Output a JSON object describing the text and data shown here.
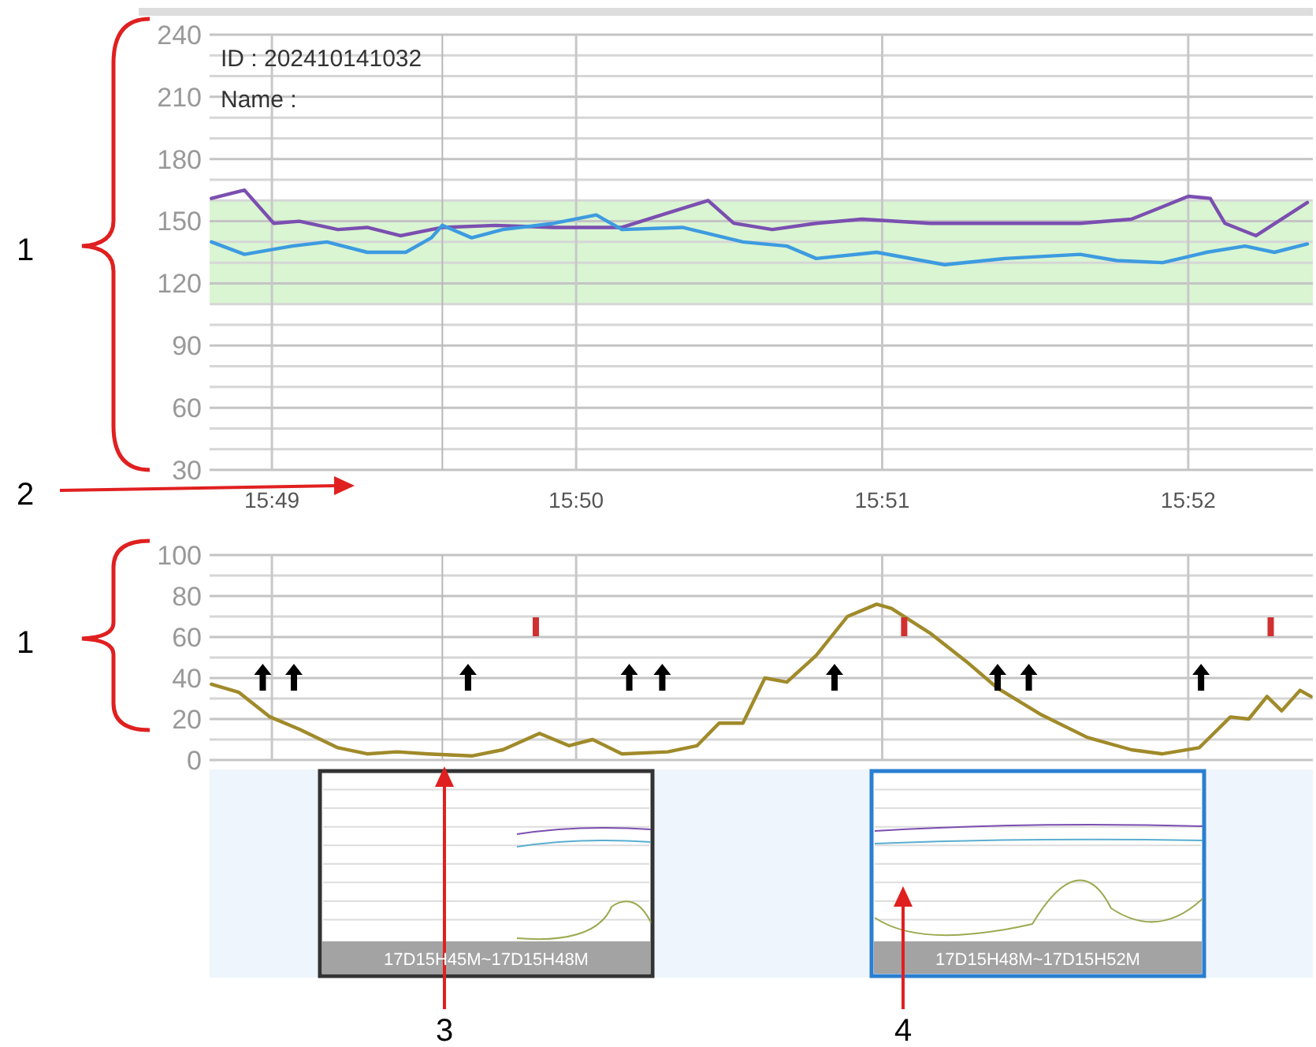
{
  "chart_data": [
    {
      "type": "line",
      "annotations": [
        "ID : 202410141032",
        "Name :"
      ],
      "xlim": [
        15.8133,
        15.8735
      ],
      "xticks": [
        {
          "value": 15.8167,
          "label": "15:49"
        },
        {
          "value": 15.8333,
          "label": "15:50"
        },
        {
          "value": 15.85,
          "label": "15:51"
        },
        {
          "value": 15.8667,
          "label": "15:52"
        }
      ],
      "ylim": [
        30,
        240
      ],
      "yticks": [
        30,
        {
          "value": 40,
          "label": null
        },
        {
          "value": 50,
          "label": null
        },
        60,
        {
          "value": 70,
          "label": null
        },
        {
          "value": 80,
          "label": null
        },
        90,
        {
          "value": 100,
          "label": null
        },
        {
          "value": 110,
          "label": null
        },
        120,
        {
          "value": 130,
          "label": null
        },
        {
          "value": 140,
          "label": null
        },
        150,
        {
          "value": 160,
          "label": null
        },
        {
          "value": 170,
          "label": null
        },
        180,
        {
          "value": 190,
          "label": null
        },
        {
          "value": 200,
          "label": null
        },
        210,
        {
          "value": 220,
          "label": null
        },
        {
          "value": 230,
          "label": null
        },
        240
      ],
      "grid": true,
      "bands": [
        {
          "axis": "y",
          "from": 110,
          "to": 160,
          "color": "#d9f5d2"
        }
      ],
      "ref_lines": [
        {
          "axis": "x",
          "value": 15.826,
          "color": "#b8b8b8"
        }
      ],
      "series": [
        {
          "color": "#7b4fb0",
          "x": [
            15.8134,
            15.8152,
            15.8168,
            15.8182,
            15.8203,
            15.8219,
            15.8237,
            15.826,
            15.8289,
            15.8321,
            15.8358,
            15.8383,
            15.8405,
            15.8419,
            15.844,
            15.8464,
            15.8489,
            15.8526,
            15.8567,
            15.8608,
            15.8636,
            15.8653,
            15.8667,
            15.8679,
            15.8687,
            15.8704,
            15.8718,
            15.8732
          ],
          "values": [
            161,
            165,
            149,
            150,
            146,
            147,
            143,
            147,
            148,
            147,
            147,
            154,
            160,
            149,
            146,
            149,
            151,
            149,
            149,
            149,
            151,
            157,
            162,
            161,
            149,
            143,
            151,
            159
          ]
        },
        {
          "color": "#3d9be0",
          "x": [
            15.8134,
            15.8152,
            15.8178,
            15.8197,
            15.8219,
            15.824,
            15.8254,
            15.826,
            15.8276,
            15.8293,
            15.8321,
            15.8344,
            15.8358,
            15.8391,
            15.8424,
            15.8448,
            15.8464,
            15.8497,
            15.8534,
            15.8567,
            15.8608,
            15.8628,
            15.8653,
            15.8677,
            15.8698,
            15.8714,
            15.8732
          ],
          "values": [
            140,
            134,
            138,
            140,
            135,
            135,
            142,
            148,
            142,
            146,
            149,
            153,
            146,
            147,
            140,
            138,
            132,
            135,
            129,
            132,
            134,
            131,
            130,
            135,
            138,
            135,
            139
          ]
        }
      ]
    },
    {
      "type": "line",
      "xlim": [
        15.8133,
        15.8735
      ],
      "xticks": [
        {
          "value": 15.8167,
          "label": null
        },
        {
          "value": 15.8333,
          "label": null
        },
        {
          "value": 15.85,
          "label": null
        },
        {
          "value": 15.8667,
          "label": null
        }
      ],
      "tick_labels": "y",
      "ylim": [
        0,
        100
      ],
      "yticks": [
        0,
        {
          "value": 10,
          "label": null
        },
        20,
        {
          "value": 30,
          "label": null
        },
        40,
        {
          "value": 50,
          "label": null
        },
        60,
        {
          "value": 70,
          "label": null
        },
        80,
        {
          "value": 90,
          "label": null
        },
        100
      ],
      "grid": true,
      "ref_lines": [
        {
          "axis": "x",
          "value": 15.826,
          "color": "#b8b8b8"
        }
      ],
      "series": [
        {
          "color": "#a08a2a",
          "x": [
            15.8134,
            15.8149,
            15.8166,
            15.8182,
            15.8203,
            15.8219,
            15.8235,
            15.8252,
            15.8276,
            15.8293,
            15.8313,
            15.8329,
            15.8342,
            15.8358,
            15.8383,
            15.8399,
            15.8411,
            15.8424,
            15.8436,
            15.8448,
            15.8464,
            15.8481,
            15.8497,
            15.8505,
            15.8526,
            15.8546,
            15.8563,
            15.8587,
            15.8612,
            15.8636,
            15.8653,
            15.8673,
            15.869,
            15.87,
            15.871,
            15.8718,
            15.8728,
            15.8734
          ],
          "values": [
            37,
            33,
            21,
            15,
            6,
            3,
            4,
            3,
            2,
            5,
            13,
            7,
            10,
            3,
            4,
            7,
            18,
            18,
            40,
            38,
            51,
            70,
            76,
            74,
            62,
            48,
            35,
            22,
            11,
            5,
            3,
            6,
            21,
            20,
            31,
            24,
            34,
            31
          ]
        },
        {
          "type": "scatter",
          "marker": "triangle",
          "color": "#000000",
          "x": [
            15.8162,
            15.8179,
            15.8274,
            15.8362,
            15.838,
            15.8474,
            15.8563,
            15.858,
            15.8674
          ],
          "values": [
            40,
            40,
            40,
            40,
            40,
            40,
            40,
            40,
            40
          ]
        },
        {
          "type": "scatter",
          "marker": "square",
          "color": "#d03030",
          "x": [
            15.8311,
            15.8512,
            15.8712
          ],
          "values": [
            65,
            65,
            65
          ]
        }
      ]
    },
    {
      "type": "other",
      "annotations": [
        "17D15H45M~17D15H48M",
        "17D15H48M~17D15H52M",
        "1",
        "2",
        "1",
        "3",
        "4"
      ]
    }
  ]
}
